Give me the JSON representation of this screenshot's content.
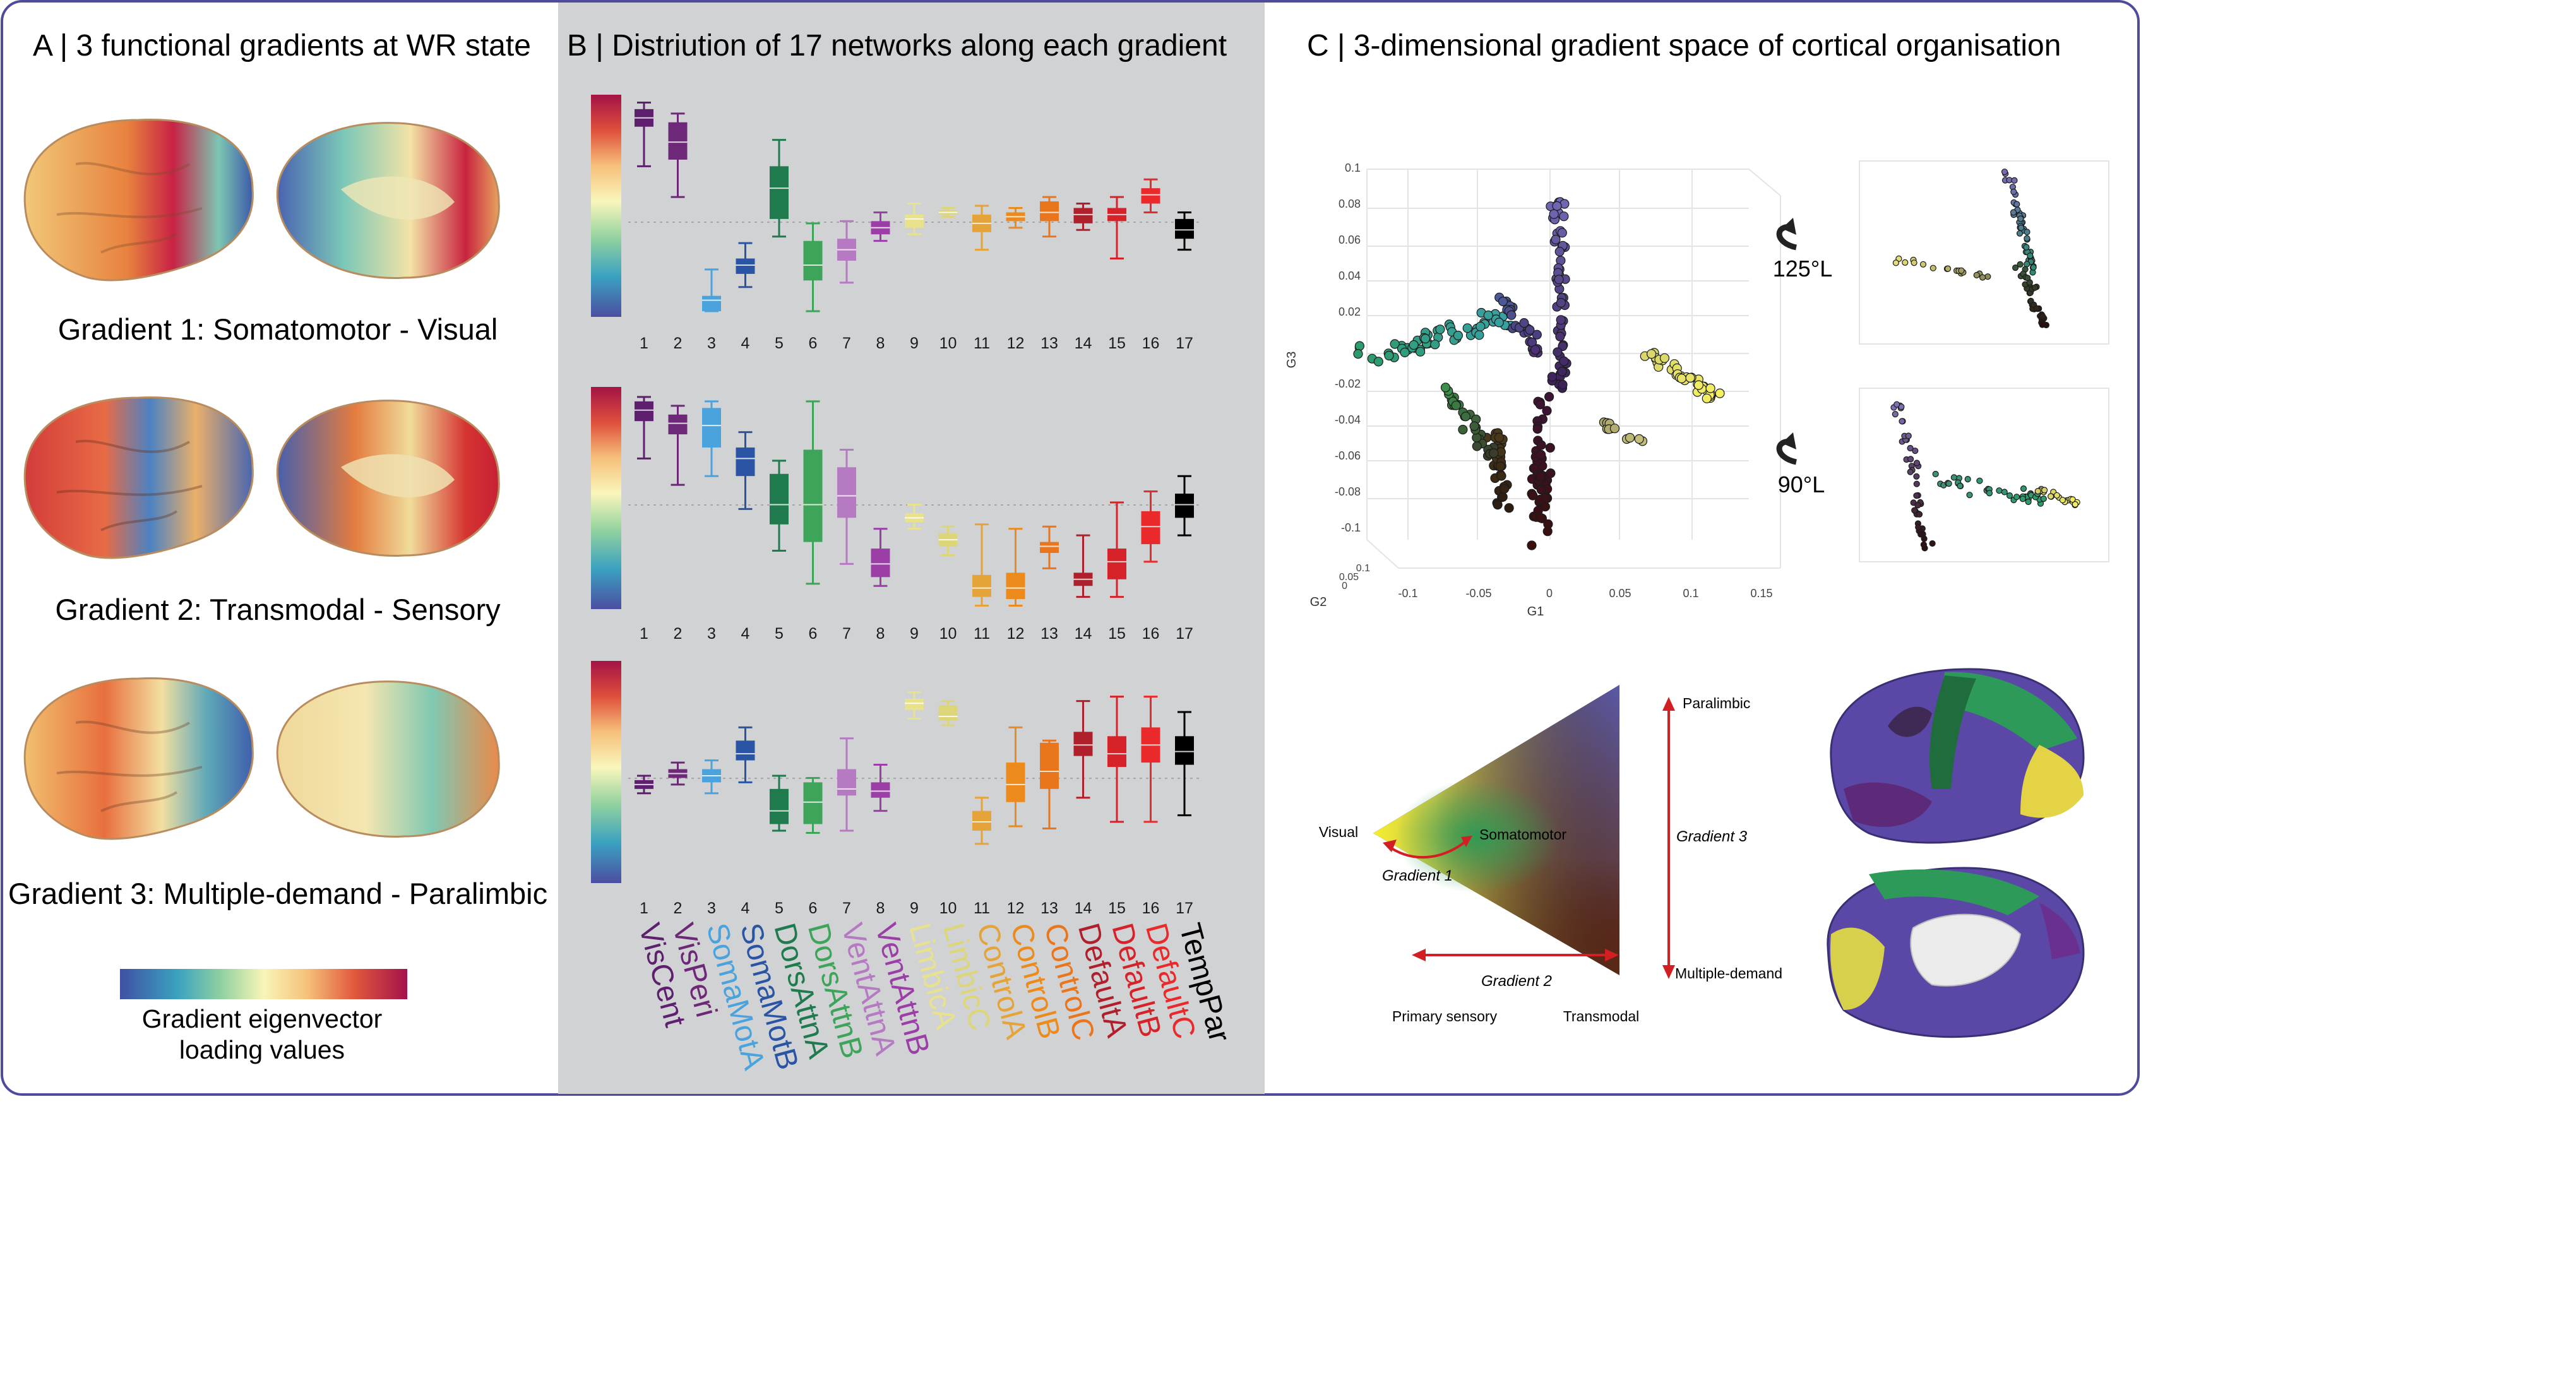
{
  "panelA": {
    "title": "A | 3 functional gradients at WR state",
    "gradient_titles": [
      "Gradient 1: Somatomotor - Visual",
      "Gradient 2: Transmodal - Sensory",
      "Gradient 3: Multiple-demand - Paralimbic"
    ],
    "colorbar_label_line1": "Gradient eigenvector",
    "colorbar_label_line2": "loading values"
  },
  "panelB": {
    "title": "B | Distriution of 17 networks along each gradient",
    "tick_labels": [
      "1",
      "2",
      "3",
      "4",
      "5",
      "6",
      "7",
      "8",
      "9",
      "10",
      "11",
      "12",
      "13",
      "14",
      "15",
      "16",
      "17"
    ],
    "networks": [
      {
        "name": "VisCent",
        "color": "#5e1f6f"
      },
      {
        "name": "VisPeri",
        "color": "#6e2878"
      },
      {
        "name": "SomaMotA",
        "color": "#4aa3dd"
      },
      {
        "name": "SomaMotB",
        "color": "#2a55a4"
      },
      {
        "name": "DorsAttnA",
        "color": "#1f7a4e"
      },
      {
        "name": "DorsAttnB",
        "color": "#3da45a"
      },
      {
        "name": "VentAttnA",
        "color": "#b57ac1"
      },
      {
        "name": "VentAttnB",
        "color": "#9b3fa7"
      },
      {
        "name": "LimbicA",
        "color": "#e9e28c"
      },
      {
        "name": "LimbicC",
        "color": "#ddd679"
      },
      {
        "name": "ControlA",
        "color": "#e4a43a"
      },
      {
        "name": "ControlB",
        "color": "#ec8b1c"
      },
      {
        "name": "ControlC",
        "color": "#e9761c"
      },
      {
        "name": "DefaultA",
        "color": "#b0202c"
      },
      {
        "name": "DefaultB",
        "color": "#d62229"
      },
      {
        "name": "DefaultC",
        "color": "#ea2a2a"
      },
      {
        "name": "TempPar",
        "color": "#000000"
      }
    ]
  },
  "panelC": {
    "title": "C | 3-dimensional gradient space of cortical organisation",
    "main_axes": {
      "x_label": "G1",
      "y_label": "G2",
      "z_label": "G3"
    },
    "g3_ticks": [
      "0.1",
      "0.08",
      "0.06",
      "0.04",
      "0.02",
      "0",
      "-0.02",
      "-0.04",
      "-0.06",
      "-0.08",
      "-0.1"
    ],
    "g1_ticks": [
      "-0.1",
      "-0.05",
      "0",
      "0.05",
      "0.1",
      "0.15"
    ],
    "g2_ticks": [
      "0.1",
      "0.05",
      "0"
    ],
    "rotation_top": "125°L",
    "rotation_bottom": "90°L",
    "triangle_labels": {
      "visual": "Visual",
      "somatomotor": "Somatomotor",
      "gradient1": "Gradient 1",
      "gradient2": "Gradient 2",
      "gradient3": "Gradient 3",
      "primary_sensory": "Primary sensory",
      "transmodal": "Transmodal",
      "paralimbic": "Paralimbic",
      "multiple_demand": "Multiple-demand"
    }
  },
  "chart_data": [
    {
      "type": "boxplot",
      "title": "Gradient 1",
      "categories": [
        "1",
        "2",
        "3",
        "4",
        "5",
        "6",
        "7",
        "8",
        "9",
        "10",
        "11",
        "12",
        "13",
        "14",
        "15",
        "16",
        "17"
      ],
      "series": [
        {
          "stats": [
            [
              0.68,
              0.86,
              0.9,
              0.94,
              0.97
            ],
            [
              0.54,
              0.71,
              0.79,
              0.88,
              0.92
            ],
            [
              0.02,
              0.02,
              0.07,
              0.09,
              0.21
            ],
            [
              0.13,
              0.19,
              0.23,
              0.26,
              0.33
            ],
            [
              0.36,
              0.44,
              0.58,
              0.68,
              0.8
            ],
            [
              0.02,
              0.16,
              0.23,
              0.34,
              0.42
            ],
            [
              0.15,
              0.25,
              0.3,
              0.35,
              0.43
            ],
            [
              0.34,
              0.37,
              0.4,
              0.43,
              0.47
            ],
            [
              0.37,
              0.4,
              0.44,
              0.46,
              0.51
            ],
            [
              0.45,
              0.46,
              0.47,
              0.48,
              0.49
            ],
            [
              0.3,
              0.38,
              0.42,
              0.46,
              0.5
            ],
            [
              0.4,
              0.43,
              0.45,
              0.47,
              0.49
            ],
            [
              0.36,
              0.43,
              0.47,
              0.52,
              0.54
            ],
            [
              0.39,
              0.42,
              0.46,
              0.49,
              0.51
            ],
            [
              0.26,
              0.43,
              0.46,
              0.49,
              0.54
            ],
            [
              0.47,
              0.51,
              0.55,
              0.58,
              0.62
            ],
            [
              0.3,
              0.35,
              0.39,
              0.44,
              0.47
            ]
          ]
        }
      ]
    },
    {
      "type": "boxplot",
      "title": "Gradient 2",
      "categories": [
        "1",
        "2",
        "3",
        "4",
        "5",
        "6",
        "7",
        "8",
        "9",
        "10",
        "11",
        "12",
        "13",
        "14",
        "15",
        "16",
        "17"
      ],
      "series": [
        {
          "stats": [
            [
              0.68,
              0.85,
              0.9,
              0.94,
              0.96
            ],
            [
              0.56,
              0.79,
              0.84,
              0.88,
              0.92
            ],
            [
              0.6,
              0.73,
              0.83,
              0.91,
              0.94
            ],
            [
              0.45,
              0.6,
              0.68,
              0.73,
              0.8
            ],
            [
              0.26,
              0.38,
              0.47,
              0.61,
              0.67
            ],
            [
              0.11,
              0.3,
              0.47,
              0.72,
              0.94
            ],
            [
              0.2,
              0.41,
              0.51,
              0.64,
              0.72
            ],
            [
              0.1,
              0.14,
              0.2,
              0.27,
              0.36
            ],
            [
              0.36,
              0.39,
              0.41,
              0.43,
              0.47
            ],
            [
              0.24,
              0.28,
              0.31,
              0.34,
              0.37
            ],
            [
              0.01,
              0.05,
              0.09,
              0.15,
              0.38
            ],
            [
              0.01,
              0.04,
              0.09,
              0.16,
              0.36
            ],
            [
              0.18,
              0.25,
              0.28,
              0.3,
              0.37
            ],
            [
              0.05,
              0.1,
              0.13,
              0.16,
              0.33
            ],
            [
              0.05,
              0.13,
              0.21,
              0.27,
              0.48
            ],
            [
              0.21,
              0.29,
              0.37,
              0.44,
              0.53
            ],
            [
              0.33,
              0.41,
              0.47,
              0.52,
              0.6
            ]
          ]
        }
      ]
    },
    {
      "type": "boxplot",
      "title": "Gradient 3",
      "categories": [
        "1",
        "2",
        "3",
        "4",
        "5",
        "6",
        "7",
        "8",
        "9",
        "10",
        "11",
        "12",
        "13",
        "14",
        "15",
        "16",
        "17"
      ],
      "series": [
        {
          "stats": [
            [
              0.4,
              0.42,
              0.44,
              0.46,
              0.48
            ],
            [
              0.44,
              0.47,
              0.49,
              0.51,
              0.54
            ],
            [
              0.4,
              0.45,
              0.48,
              0.51,
              0.55
            ],
            [
              0.45,
              0.55,
              0.58,
              0.64,
              0.7
            ],
            [
              0.23,
              0.26,
              0.32,
              0.42,
              0.48
            ],
            [
              0.22,
              0.26,
              0.36,
              0.45,
              0.47
            ],
            [
              0.23,
              0.39,
              0.42,
              0.51,
              0.65
            ],
            [
              0.32,
              0.38,
              0.41,
              0.45,
              0.53
            ],
            [
              0.74,
              0.78,
              0.81,
              0.83,
              0.86
            ],
            [
              0.71,
              0.73,
              0.75,
              0.8,
              0.82
            ],
            [
              0.17,
              0.23,
              0.27,
              0.32,
              0.38
            ],
            [
              0.25,
              0.36,
              0.44,
              0.54,
              0.7
            ],
            [
              0.24,
              0.42,
              0.5,
              0.63,
              0.64
            ],
            [
              0.38,
              0.57,
              0.62,
              0.68,
              0.82
            ],
            [
              0.27,
              0.52,
              0.58,
              0.66,
              0.84
            ],
            [
              0.27,
              0.54,
              0.62,
              0.7,
              0.84
            ],
            [
              0.3,
              0.53,
              0.59,
              0.66,
              0.77
            ]
          ]
        }
      ]
    }
  ]
}
